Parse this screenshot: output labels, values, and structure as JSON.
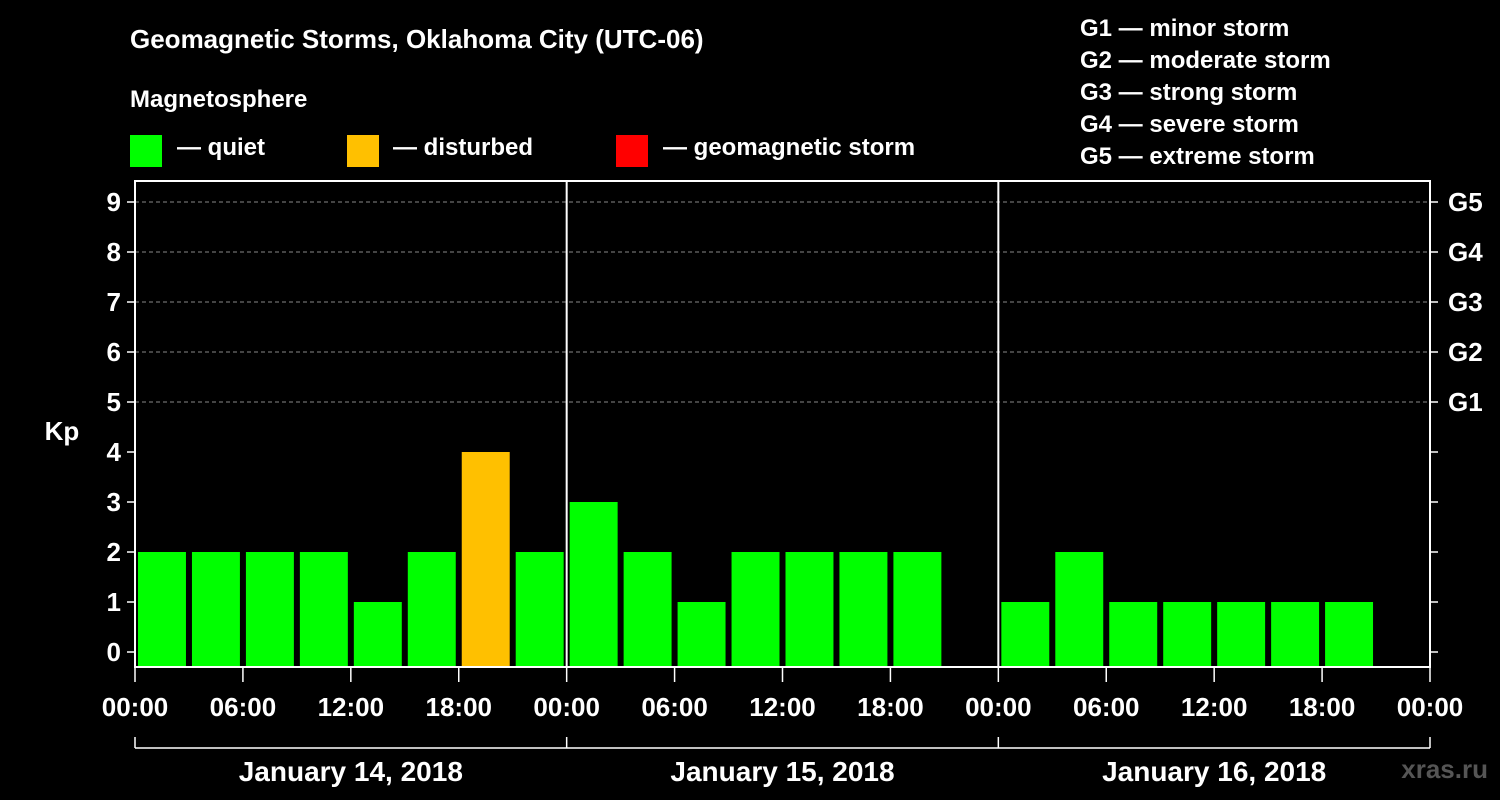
{
  "title": "Geomagnetic Storms, Oklahoma City (UTC-06)",
  "legend": {
    "heading": "Magnetosphere",
    "items": [
      {
        "label": "— quiet",
        "color": "#00ff00"
      },
      {
        "label": "— disturbed",
        "color": "#ffc000"
      },
      {
        "label": "— geomagnetic storm",
        "color": "#ff0000"
      }
    ]
  },
  "storm_scale": [
    "G1 — minor storm",
    "G2 — moderate storm",
    "G3 — strong storm",
    "G4 — severe storm",
    "G5 — extreme storm"
  ],
  "watermark": "xras.ru",
  "chart_data": {
    "type": "bar",
    "ylabel": "Kp",
    "ylim": [
      0,
      9
    ],
    "yticks": [
      "0",
      "1",
      "2",
      "3",
      "4",
      "5",
      "6",
      "7",
      "8",
      "9"
    ],
    "right_axis_labels": [
      {
        "kp": 5,
        "label": "G1"
      },
      {
        "kp": 6,
        "label": "G2"
      },
      {
        "kp": 7,
        "label": "G3"
      },
      {
        "kp": 8,
        "label": "G4"
      },
      {
        "kp": 9,
        "label": "G5"
      }
    ],
    "x_tick_labels": [
      "00:00",
      "06:00",
      "12:00",
      "18:00",
      "00:00",
      "06:00",
      "12:00",
      "18:00",
      "00:00",
      "06:00",
      "12:00",
      "18:00",
      "00:00"
    ],
    "days": [
      "January 14, 2018",
      "January 15, 2018",
      "January 16, 2018"
    ],
    "grid": "dashed horizontal at Kp 5-9",
    "colors": {
      "quiet": "#00ff00",
      "disturbed": "#ffc000",
      "storm": "#ff0000"
    },
    "values": [
      [
        2,
        2,
        2,
        2,
        1,
        2,
        4,
        2
      ],
      [
        3,
        2,
        1,
        2,
        2,
        2,
        2,
        null
      ],
      [
        1,
        2,
        1,
        1,
        1,
        1,
        1,
        null
      ]
    ]
  }
}
